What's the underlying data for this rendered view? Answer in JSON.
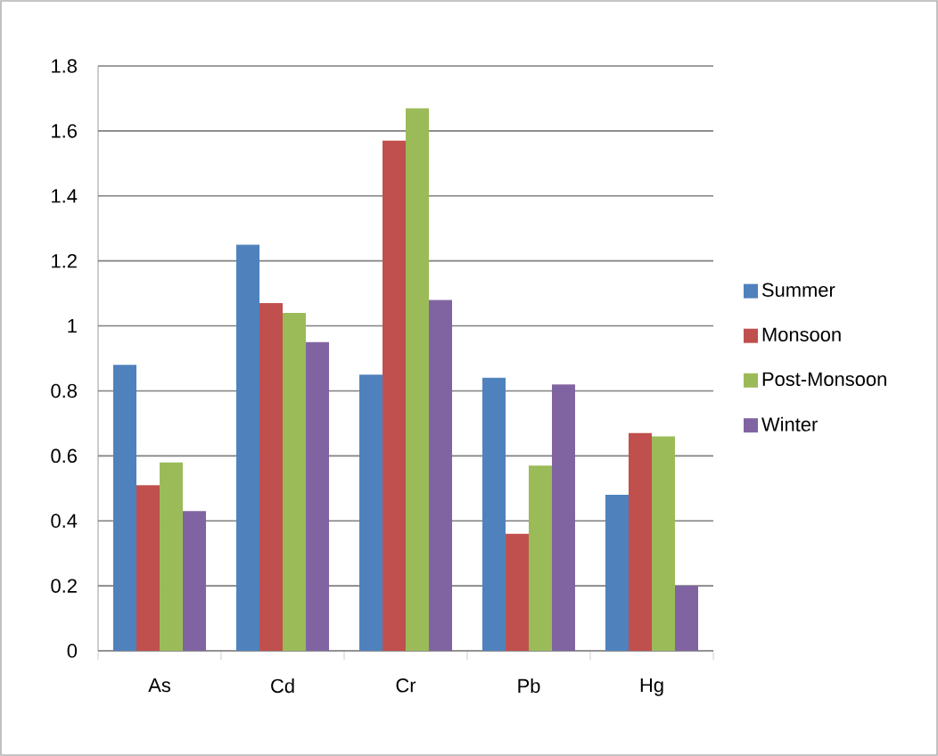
{
  "chart_data": {
    "type": "bar",
    "categories": [
      "As",
      "Cd",
      "Cr",
      "Pb",
      "Hg"
    ],
    "series": [
      {
        "name": "Summer",
        "color": "#4f81bd",
        "values": [
          0.88,
          1.25,
          0.85,
          0.84,
          0.48
        ]
      },
      {
        "name": "Monsoon",
        "color": "#c0504d",
        "values": [
          0.51,
          1.07,
          1.57,
          0.36,
          0.67
        ]
      },
      {
        "name": "Post-Monsoon",
        "color": "#9bbb59",
        "values": [
          0.58,
          1.04,
          1.67,
          0.57,
          0.66
        ]
      },
      {
        "name": "Winter",
        "color": "#8064a2",
        "values": [
          0.43,
          0.95,
          1.08,
          0.82,
          0.2
        ]
      }
    ],
    "ylim": [
      0,
      1.8
    ],
    "yticks": [
      0,
      0.2,
      0.4,
      0.6,
      0.8,
      1,
      1.2,
      1.4,
      1.6,
      1.8
    ],
    "grid": "y",
    "legend": "right"
  }
}
